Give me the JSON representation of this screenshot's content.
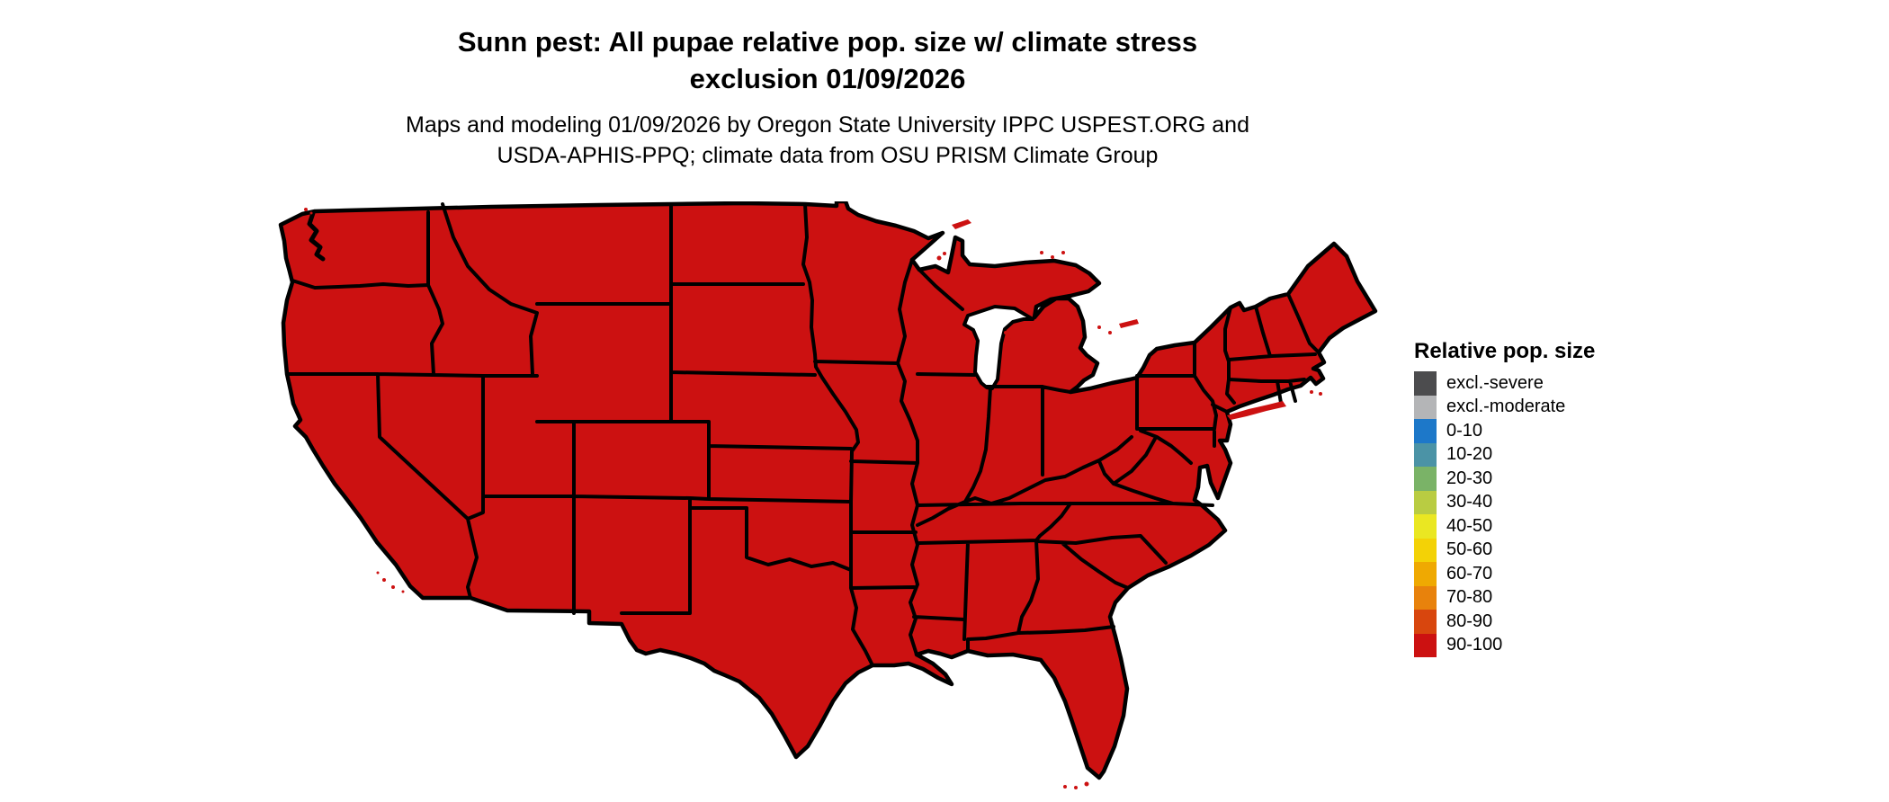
{
  "header": {
    "title_line1": "Sunn pest: All pupae relative pop. size w/ climate stress",
    "title_line2": "exclusion 01/09/2026",
    "subtitle_line1": "Maps and modeling 01/09/2026 by Oregon State University IPPC USPEST.ORG and",
    "subtitle_line2": "USDA-APHIS-PPQ; climate data from OSU PRISM Climate Group"
  },
  "legend": {
    "title": "Relative pop. size",
    "items": [
      {
        "label": "excl.-severe",
        "color": "#4c4c4e"
      },
      {
        "label": "excl.-moderate",
        "color": "#b4b5b7"
      },
      {
        "label": "0-10",
        "color": "#1d78c9"
      },
      {
        "label": "10-20",
        "color": "#4b93a6"
      },
      {
        "label": "20-30",
        "color": "#7ab367"
      },
      {
        "label": "30-40",
        "color": "#b9cc42"
      },
      {
        "label": "40-50",
        "color": "#eae722"
      },
      {
        "label": "50-60",
        "color": "#f3d206"
      },
      {
        "label": "60-70",
        "color": "#efa902"
      },
      {
        "label": "70-80",
        "color": "#e8820c"
      },
      {
        "label": "80-90",
        "color": "#d8460e"
      },
      {
        "label": "90-100",
        "color": "#cc1111"
      }
    ]
  },
  "map_data": {
    "type": "choropleth",
    "region": "Contiguous United States",
    "land_color": "#cc1111",
    "border_color": "#000000",
    "water_color": "#ffffff",
    "all_states_category": "90-100"
  }
}
